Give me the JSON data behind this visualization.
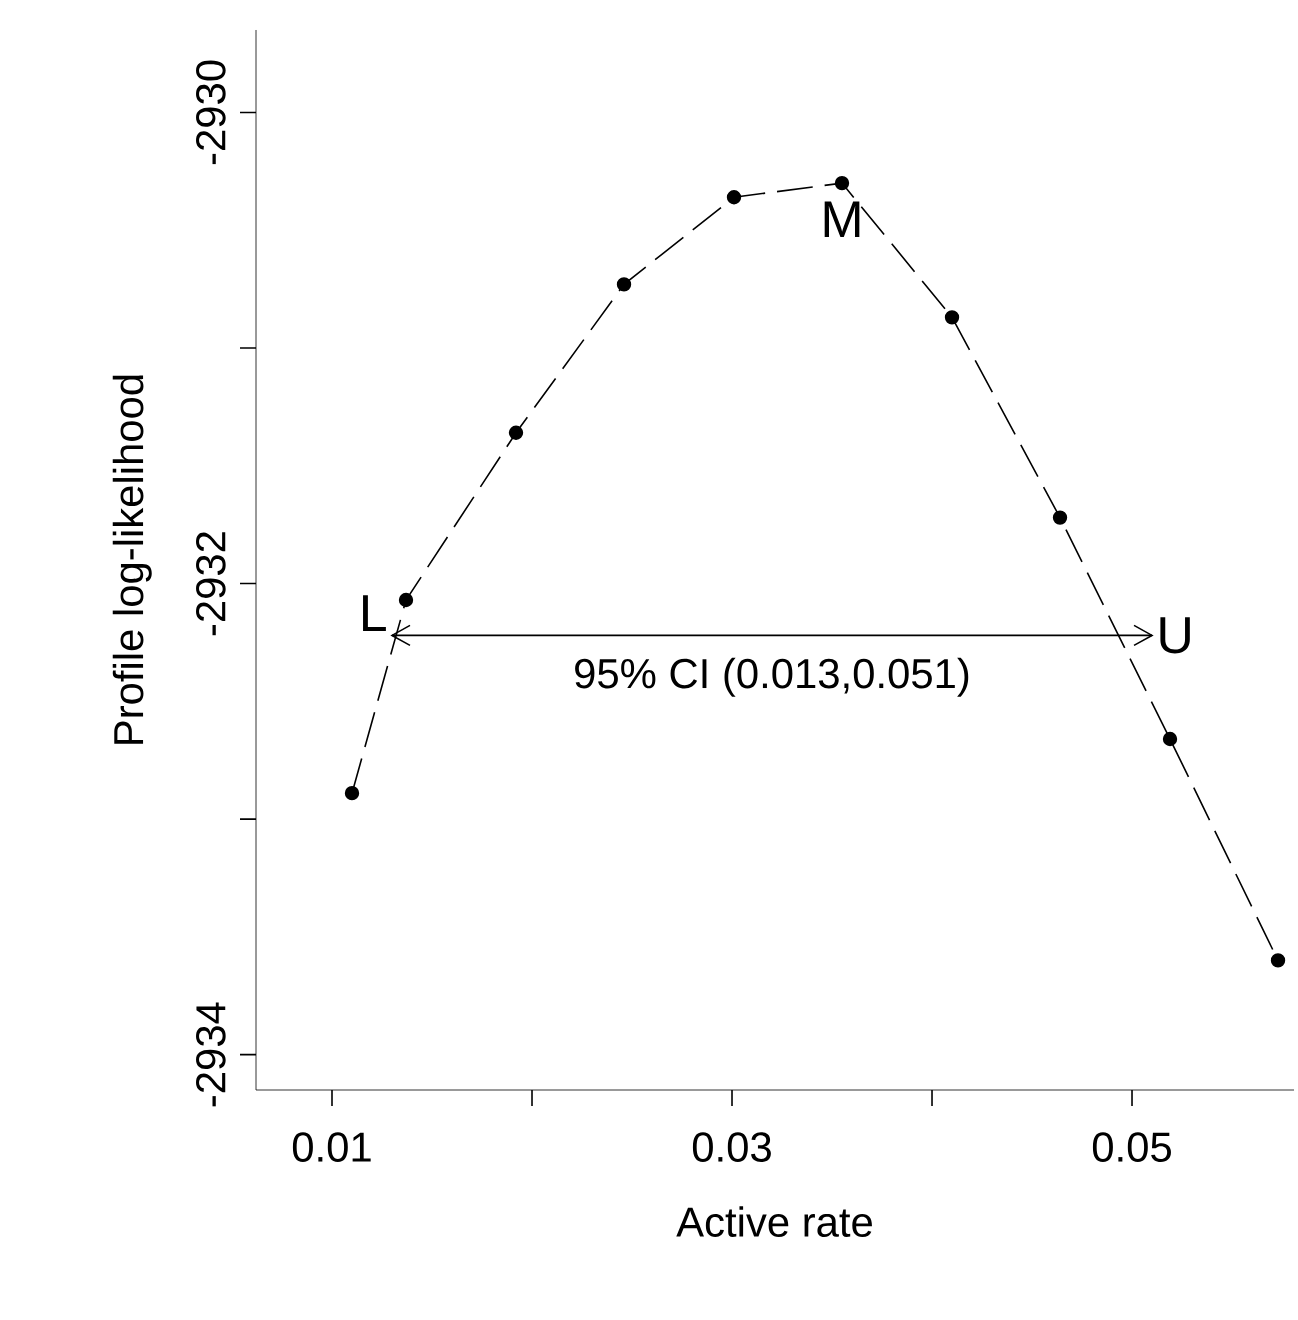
{
  "chart_data": {
    "type": "line",
    "xlabel": "Active rate",
    "ylabel": "Profile log-likelihood",
    "xlim": [
      0.0062,
      0.0581
    ],
    "ylim": [
      -2934.15,
      -2929.65
    ],
    "xticks": [
      0.01,
      {
        "value": 0.02,
        "label": null
      },
      0.03,
      {
        "value": 0.04,
        "label": null
      },
      0.05
    ],
    "yticks": [
      -2934,
      {
        "value": -2933,
        "label": null
      },
      -2932,
      {
        "value": -2931,
        "label": null
      },
      -2930
    ],
    "grid": false,
    "series": [
      {
        "x": [
          0.011,
          0.0137,
          0.0192,
          0.0246,
          0.0301,
          0.0355,
          0.041,
          0.0464,
          0.0519,
          0.0573
        ],
        "values": [
          -2932.89,
          -2932.07,
          -2931.36,
          -2930.73,
          -2930.36,
          -2930.3,
          -2930.87,
          -2931.72,
          -2932.66,
          -2933.6
        ],
        "color": "#000000",
        "marker": "circle",
        "line_style": "dashed"
      },
      {
        "x": [
          0.013,
          0.051
        ],
        "values": [
          -2932.22,
          -2932.22
        ],
        "color": "#000000",
        "line_style": "solid"
      }
    ],
    "annotations": [
      "L",
      "M",
      "U",
      "95% CI (0.013,0.051)"
    ]
  }
}
